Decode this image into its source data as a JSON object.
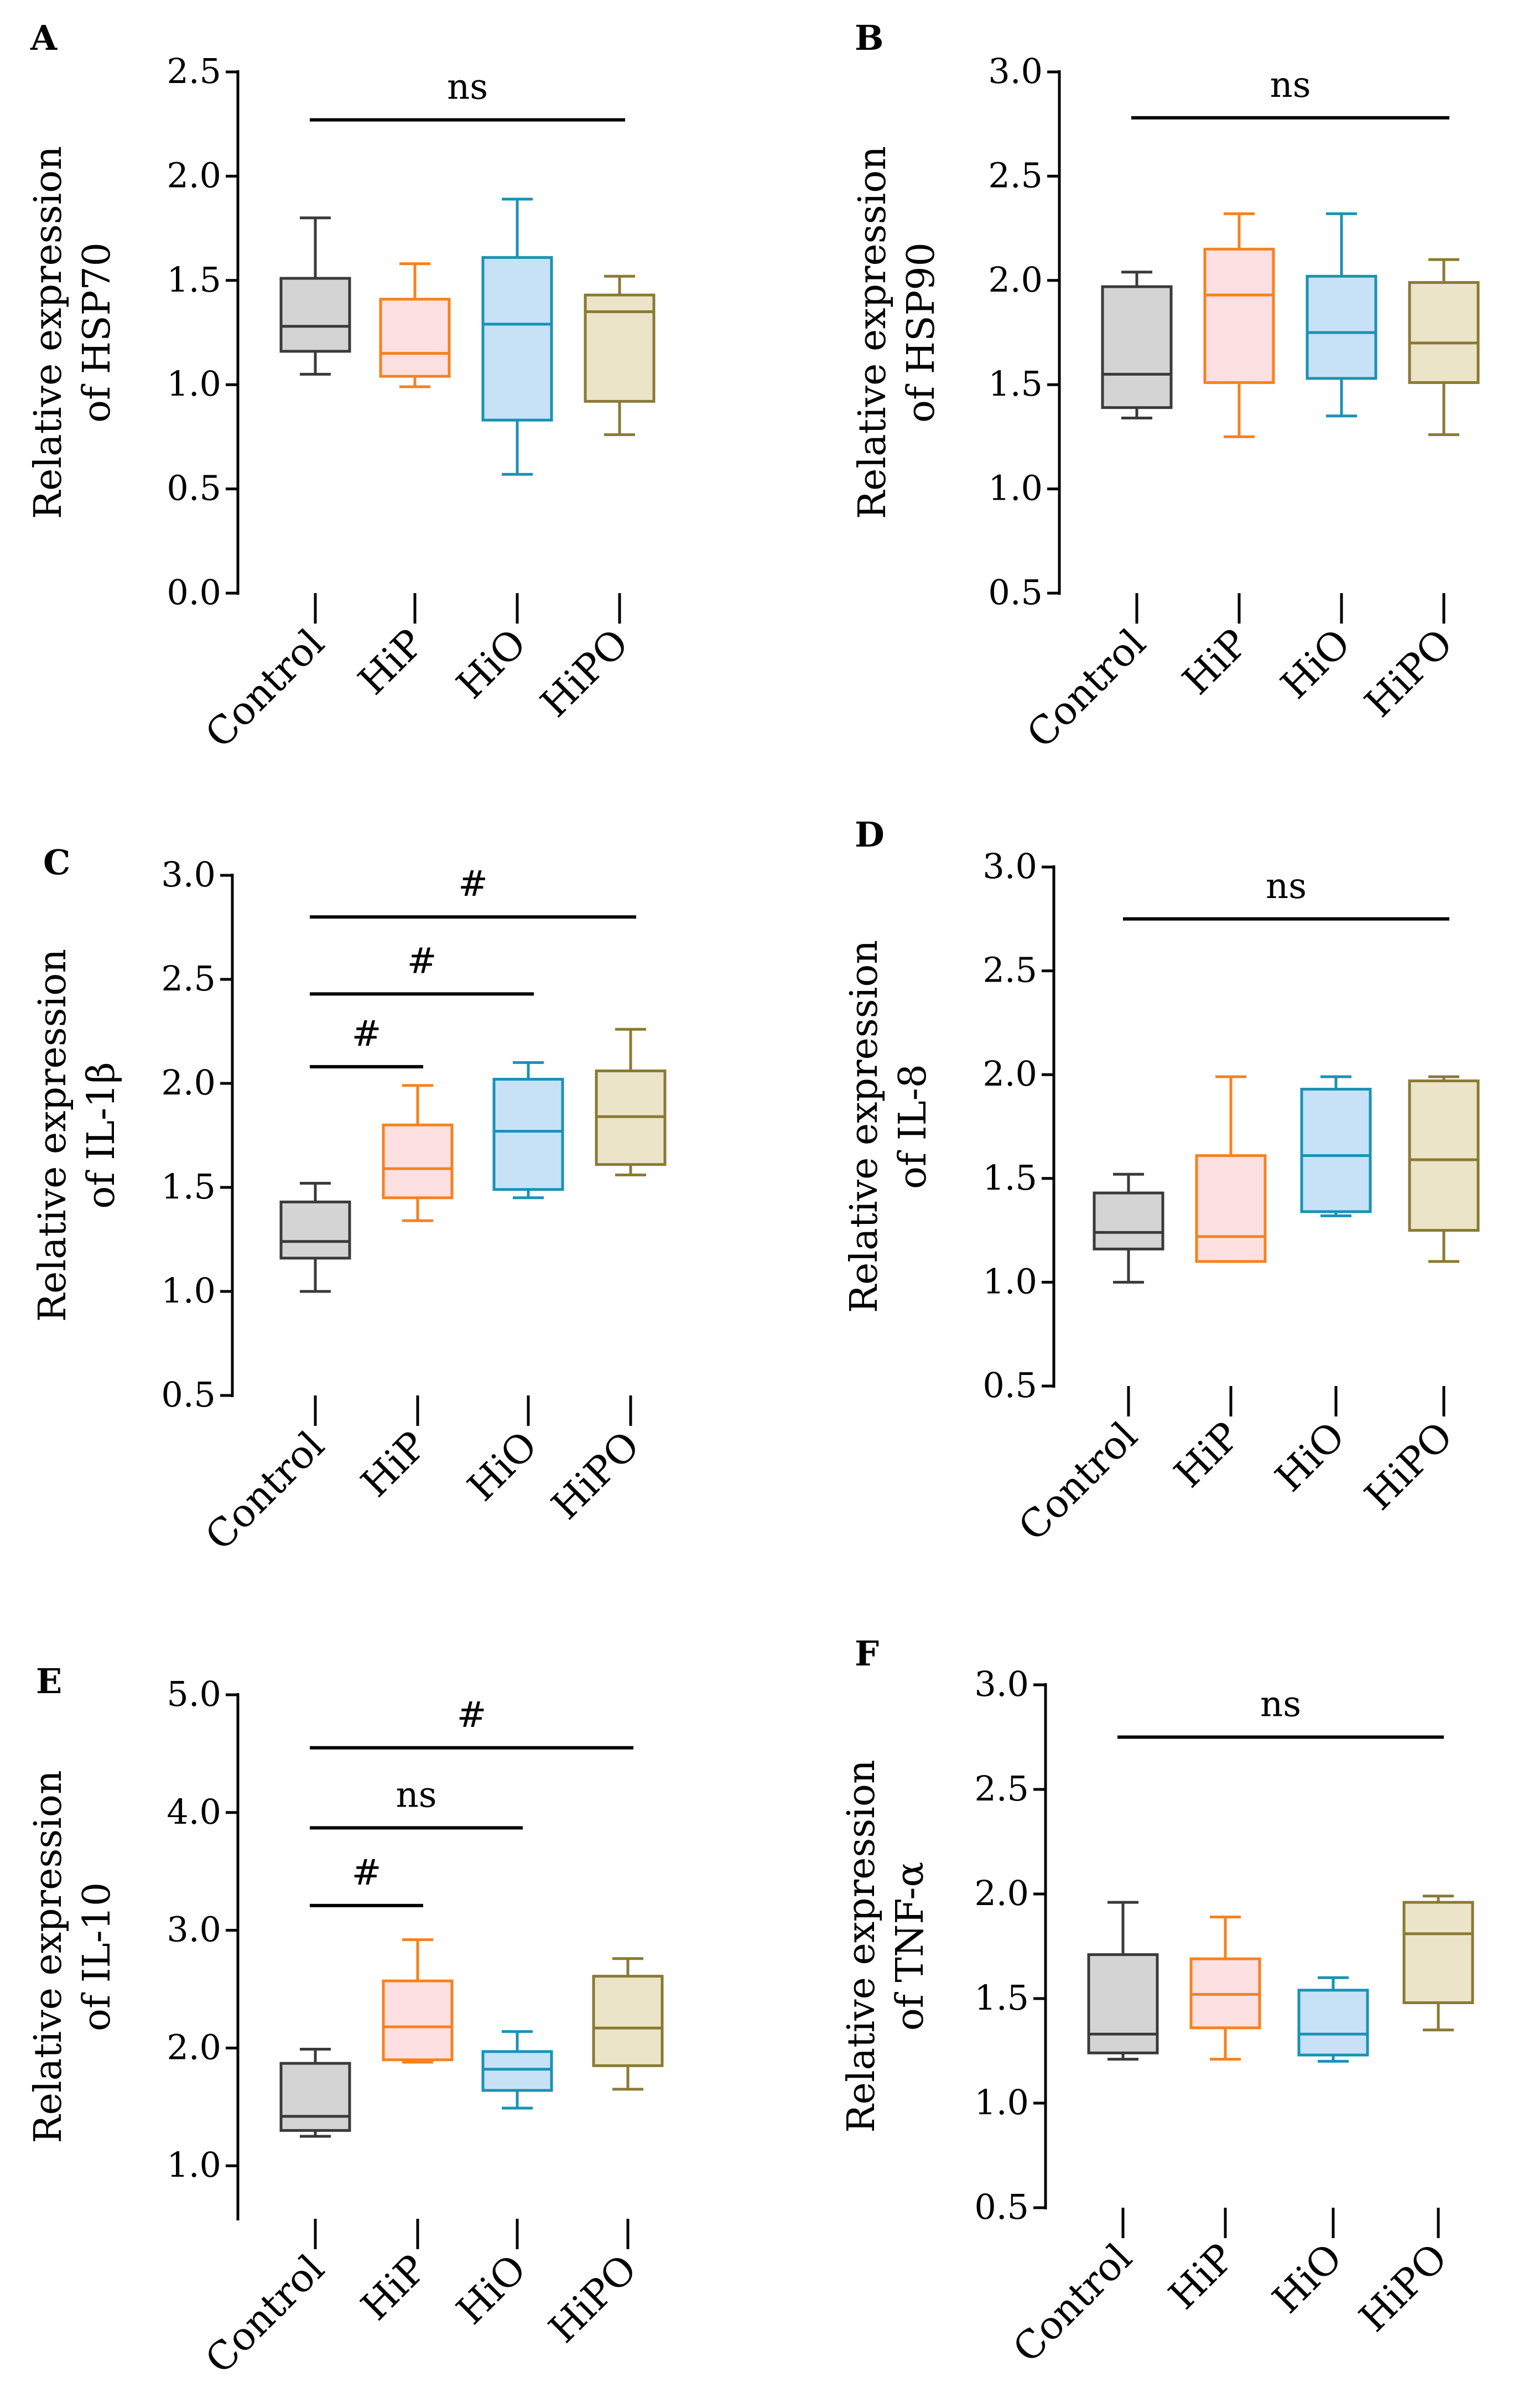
{
  "figure": {
    "colors": {
      "Control": {
        "stroke": "#3a3a3a",
        "fill": "#d4d4d4"
      },
      "HiP": {
        "stroke": "#f5821f",
        "fill": "#fde0e2"
      },
      "HiO": {
        "stroke": "#1a92b5",
        "fill": "#c7e2f7"
      },
      "HiPO": {
        "stroke": "#8a7a33",
        "fill": "#ebe4c8"
      }
    }
  },
  "chart_data": [
    {
      "panel": "A",
      "type": "box",
      "ylabel": [
        "Relative expression",
        "of HSP70"
      ],
      "categories": [
        "Control",
        "HiP",
        "HiO",
        "HiPO"
      ],
      "ylim": [
        0.0,
        2.5
      ],
      "ticks": [
        "0.0",
        "0.5",
        "1.0",
        "1.5",
        "2.0",
        "2.5"
      ],
      "series": [
        {
          "name": "Control",
          "min": 1.05,
          "q1": 1.16,
          "median": 1.28,
          "q3": 1.51,
          "max": 1.8
        },
        {
          "name": "HiP",
          "min": 0.99,
          "q1": 1.04,
          "median": 1.15,
          "q3": 1.41,
          "max": 1.58
        },
        {
          "name": "HiO",
          "min": 0.57,
          "q1": 0.83,
          "median": 1.29,
          "q3": 1.61,
          "max": 1.89
        },
        {
          "name": "HiPO",
          "min": 0.76,
          "q1": 0.92,
          "median": 1.35,
          "q3": 1.43,
          "max": 1.52
        }
      ],
      "annotations": [
        {
          "text": "ns",
          "from": "Control",
          "to": "HiPO",
          "y": 2.27
        }
      ]
    },
    {
      "panel": "B",
      "type": "box",
      "ylabel": [
        "Relative expression",
        "of HSP90"
      ],
      "categories": [
        "Control",
        "HiP",
        "HiO",
        "HiPO"
      ],
      "ylim": [
        0.5,
        3.0
      ],
      "ticks": [
        "0.5",
        "1.0",
        "1.5",
        "2.0",
        "2.5",
        "3.0"
      ],
      "series": [
        {
          "name": "Control",
          "min": 1.34,
          "q1": 1.39,
          "median": 1.55,
          "q3": 1.97,
          "max": 2.04
        },
        {
          "name": "HiP",
          "min": 1.25,
          "q1": 1.51,
          "median": 1.93,
          "q3": 2.15,
          "max": 2.32
        },
        {
          "name": "HiO",
          "min": 1.35,
          "q1": 1.53,
          "median": 1.75,
          "q3": 2.02,
          "max": 2.32
        },
        {
          "name": "HiPO",
          "min": 1.26,
          "q1": 1.51,
          "median": 1.7,
          "q3": 1.99,
          "max": 2.1
        }
      ],
      "annotations": [
        {
          "text": "ns",
          "from": "Control",
          "to": "HiPO",
          "y": 2.78
        }
      ]
    },
    {
      "panel": "C",
      "type": "box",
      "ylabel": [
        "Relative expression",
        "of IL-1β"
      ],
      "categories": [
        "Control",
        "HiP",
        "HiO",
        "HiPO"
      ],
      "ylim": [
        0.5,
        3.0
      ],
      "ticks": [
        "0.5",
        "1.0",
        "1.5",
        "2.0",
        "2.5",
        "3.0"
      ],
      "series": [
        {
          "name": "Control",
          "min": 1.0,
          "q1": 1.16,
          "median": 1.24,
          "q3": 1.43,
          "max": 1.52
        },
        {
          "name": "HiP",
          "min": 1.34,
          "q1": 1.45,
          "median": 1.59,
          "q3": 1.8,
          "max": 1.99
        },
        {
          "name": "HiO",
          "min": 1.45,
          "q1": 1.49,
          "median": 1.77,
          "q3": 2.02,
          "max": 2.1
        },
        {
          "name": "HiPO",
          "min": 1.56,
          "q1": 1.61,
          "median": 1.84,
          "q3": 2.06,
          "max": 2.26
        }
      ],
      "annotations": [
        {
          "text": "#",
          "from": "Control",
          "to": "HiPO",
          "y": 2.8
        },
        {
          "text": "#",
          "from": "Control",
          "to": "HiO",
          "y": 2.43
        },
        {
          "text": "#",
          "from": "Control",
          "to": "HiP",
          "y": 2.08
        }
      ]
    },
    {
      "panel": "D",
      "type": "box",
      "ylabel": [
        "Relative expression",
        "of IL-8"
      ],
      "categories": [
        "Control",
        "HiP",
        "HiO",
        "HiPO"
      ],
      "ylim": [
        0.5,
        3.0
      ],
      "ticks": [
        "0.5",
        "1.0",
        "1.5",
        "2.0",
        "2.5",
        "3.0"
      ],
      "series": [
        {
          "name": "Control",
          "min": 1.0,
          "q1": 1.16,
          "median": 1.24,
          "q3": 1.43,
          "max": 1.52
        },
        {
          "name": "HiP",
          "min": 1.1,
          "q1": 1.1,
          "median": 1.22,
          "q3": 1.61,
          "max": 1.99
        },
        {
          "name": "HiO",
          "min": 1.32,
          "q1": 1.34,
          "median": 1.61,
          "q3": 1.93,
          "max": 1.99
        },
        {
          "name": "HiPO",
          "min": 1.1,
          "q1": 1.25,
          "median": 1.59,
          "q3": 1.97,
          "max": 1.99
        }
      ],
      "annotations": [
        {
          "text": "ns",
          "from": "Control",
          "to": "HiPO",
          "y": 2.75
        }
      ]
    },
    {
      "panel": "E",
      "type": "box",
      "ylabel": [
        "Relative expression",
        "of IL-10"
      ],
      "categories": [
        "Control",
        "HiP",
        "HiO",
        "HiPO"
      ],
      "ylim": [
        0.55,
        5.0
      ],
      "ticks": [
        "1.0",
        "2.0",
        "3.0",
        "4.0",
        "5.0"
      ],
      "tick_values": [
        1.0,
        2.0,
        3.0,
        4.0,
        5.0
      ],
      "series": [
        {
          "name": "Control",
          "min": 1.25,
          "q1": 1.3,
          "median": 1.42,
          "q3": 1.87,
          "max": 1.99
        },
        {
          "name": "HiP",
          "min": 1.88,
          "q1": 1.9,
          "median": 2.18,
          "q3": 2.57,
          "max": 2.92
        },
        {
          "name": "HiO",
          "min": 1.49,
          "q1": 1.64,
          "median": 1.82,
          "q3": 1.97,
          "max": 2.14
        },
        {
          "name": "HiPO",
          "min": 1.65,
          "q1": 1.85,
          "median": 2.17,
          "q3": 2.61,
          "max": 2.76
        }
      ],
      "annotations": [
        {
          "text": "#",
          "from": "Control",
          "to": "HiPO",
          "y": 4.55
        },
        {
          "text": "ns",
          "from": "Control",
          "to": "HiO",
          "y": 3.87
        },
        {
          "text": "#",
          "from": "Control",
          "to": "HiP",
          "y": 3.21
        }
      ]
    },
    {
      "panel": "F",
      "type": "box",
      "ylabel": [
        "Relative expression",
        "of TNF-α"
      ],
      "categories": [
        "Control",
        "HiP",
        "HiO",
        "HiPO"
      ],
      "ylim": [
        0.5,
        3.0
      ],
      "ticks": [
        "0.5",
        "1.0",
        "1.5",
        "2.0",
        "2.5",
        "3.0"
      ],
      "series": [
        {
          "name": "Control",
          "min": 1.21,
          "q1": 1.24,
          "median": 1.33,
          "q3": 1.71,
          "max": 1.96
        },
        {
          "name": "HiP",
          "min": 1.21,
          "q1": 1.36,
          "median": 1.52,
          "q3": 1.69,
          "max": 1.89
        },
        {
          "name": "HiO",
          "min": 1.2,
          "q1": 1.23,
          "median": 1.33,
          "q3": 1.54,
          "max": 1.6
        },
        {
          "name": "HiPO",
          "min": 1.35,
          "q1": 1.48,
          "median": 1.81,
          "q3": 1.96,
          "max": 1.99
        }
      ],
      "annotations": [
        {
          "text": "ns",
          "from": "Control",
          "to": "HiPO",
          "y": 2.75
        }
      ]
    }
  ]
}
